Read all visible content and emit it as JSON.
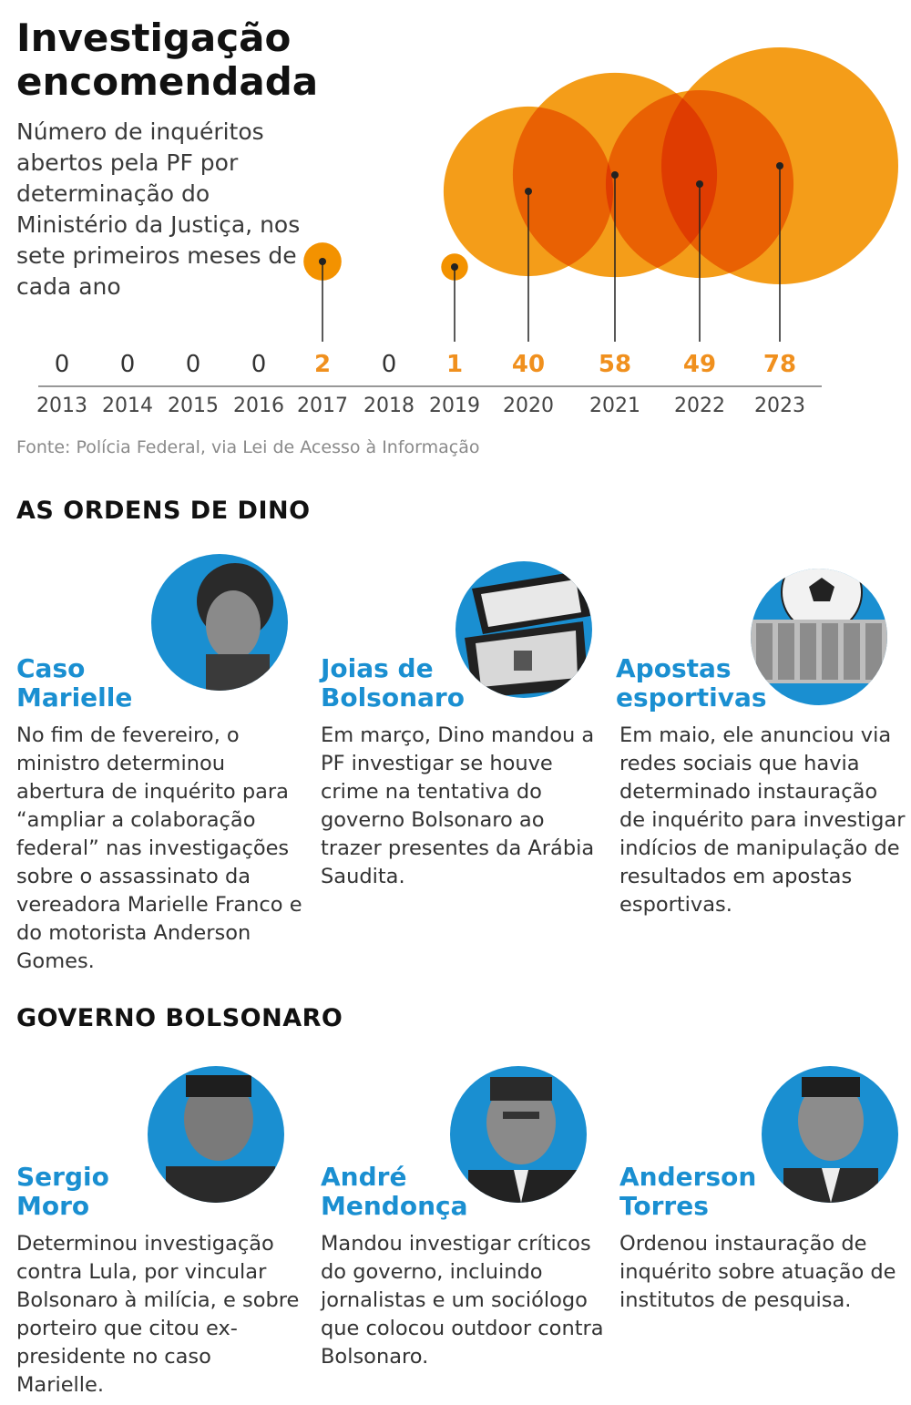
{
  "title": "Investigação encomendada",
  "subtitle": "Número de inquéritos abertos pela PF por determinação do Ministério da Justiça, nos sete primeiros meses de cada ano",
  "source": "Fonte: Polícia Federal, via Lei de Acesso à Informação",
  "colors": {
    "accent": "#f0901e",
    "bubble": "#f39200",
    "overlap": "#e2501b",
    "blue": "#1a8fd1"
  },
  "chart_data": {
    "type": "bubble",
    "categories": [
      "2013",
      "2014",
      "2015",
      "2016",
      "2017",
      "2018",
      "2019",
      "2020",
      "2021",
      "2022",
      "2023"
    ],
    "values": [
      0,
      0,
      0,
      0,
      2,
      0,
      1,
      40,
      58,
      49,
      78
    ],
    "value_labels": [
      "0",
      "0",
      "0",
      "0",
      "2",
      "0",
      "1",
      "40",
      "58",
      "49",
      "78"
    ],
    "highlight_nonzero": true,
    "grid": false,
    "legend": "none"
  },
  "sections": [
    {
      "heading": "AS ORDENS DE DINO",
      "cards": [
        {
          "title": "Caso Marielle",
          "photo": "marielle-portrait",
          "text": "No fim de fevereiro, o ministro determinou abertura de inquérito para “ampliar a colaboração federal” nas investigações sobre o assassinato da vereadora Marielle Franco e do motorista Anderson Gomes."
        },
        {
          "title": "Joias de Bolsonaro",
          "photo": "jewelry-box",
          "text": "Em março, Dino mandou a PF investigar se houve crime na tentativa do governo Bolsonaro ao trazer presentes da Arábia Saudita."
        },
        {
          "title": "Apostas esportivas",
          "photo": "football-and-money",
          "text": "Em maio, ele anunciou via redes sociais que havia determinado instauração de inquérito para investigar indícios de manipulação de resultados em apostas esportivas."
        }
      ]
    },
    {
      "heading": "GOVERNO BOLSONARO",
      "cards": [
        {
          "title": "Sergio Moro",
          "photo": "moro-portrait",
          "text": "Determinou investigação contra Lula, por vincular Bolsonaro à milícia, e sobre porteiro que citou ex-presidente no caso Marielle."
        },
        {
          "title": "André Mendonça",
          "photo": "mendonca-portrait",
          "text": "Mandou investigar críticos do governo, incluindo jornalistas e um sociólogo que colocou outdoor contra Bolsonaro."
        },
        {
          "title": "Anderson Torres",
          "photo": "torres-portrait",
          "text": "Ordenou instauração de inquérito sobre atuação de institutos de pesquisa."
        }
      ]
    }
  ]
}
